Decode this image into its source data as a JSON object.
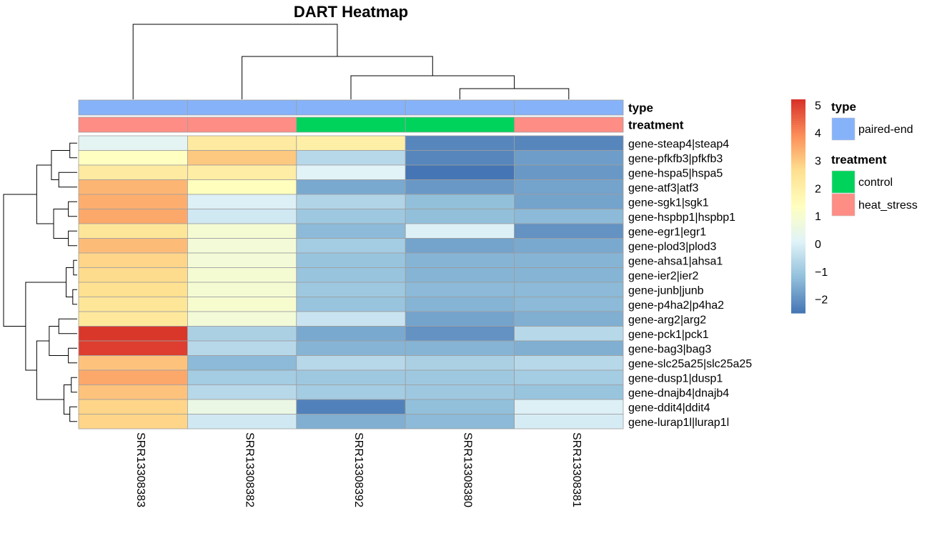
{
  "chart_data": {
    "type": "heatmap",
    "title": "DART Heatmap",
    "columns": [
      "SRR13308383",
      "SRR13308382",
      "SRR13308392",
      "SRR13308380",
      "SRR13308381"
    ],
    "rows": [
      "gene-steap4|steap4",
      "gene-pfkfb3|pfkfb3",
      "gene-hspa5|hspa5",
      "gene-atf3|atf3",
      "gene-sgk1|sgk1",
      "gene-hspbp1|hspbp1",
      "gene-egr1|egr1",
      "gene-plod3|plod3",
      "gene-ahsa1|ahsa1",
      "gene-ier2|ier2",
      "gene-junb|junb",
      "gene-p4ha2|p4ha2",
      "gene-arg2|arg2",
      "gene-pck1|pck1",
      "gene-bag3|bag3",
      "gene-slc25a25|slc25a25",
      "gene-dusp1|dusp1",
      "gene-dnajb4|dnajb4",
      "gene-ddit4|ddit4",
      "gene-lurap1l|lurap1l"
    ],
    "values": [
      [
        0.2,
        2.2,
        2.0,
        -2.2,
        -2.2
      ],
      [
        1.3,
        3.0,
        -0.6,
        -2.2,
        -1.8
      ],
      [
        2.2,
        2.1,
        0.1,
        -2.5,
        -1.9
      ],
      [
        3.3,
        1.4,
        -1.6,
        -1.9,
        -1.7
      ],
      [
        3.4,
        0.0,
        -0.7,
        -1.2,
        -1.7
      ],
      [
        3.5,
        -0.2,
        -1.0,
        -1.2,
        -1.3
      ],
      [
        2.4,
        0.9,
        -1.3,
        0.0,
        -2.0
      ],
      [
        3.2,
        0.8,
        -0.9,
        -1.7,
        -1.6
      ],
      [
        2.8,
        0.8,
        -1.1,
        -1.4,
        -1.4
      ],
      [
        2.7,
        0.9,
        -1.1,
        -1.4,
        -1.4
      ],
      [
        2.6,
        0.9,
        -1.0,
        -1.3,
        -1.3
      ],
      [
        2.4,
        1.0,
        -1.1,
        -1.4,
        -1.3
      ],
      [
        2.3,
        0.8,
        -0.3,
        -1.7,
        -1.5
      ],
      [
        5.1,
        -0.8,
        -1.6,
        -2.0,
        -0.6
      ],
      [
        5.0,
        -0.6,
        -1.4,
        -1.4,
        -1.5
      ],
      [
        3.1,
        -1.3,
        -0.6,
        -0.8,
        -0.6
      ],
      [
        3.5,
        -0.9,
        -1.0,
        -1.0,
        -0.9
      ],
      [
        3.1,
        -0.6,
        -0.9,
        -1.0,
        -1.1
      ],
      [
        2.8,
        0.5,
        -2.3,
        -1.2,
        0.0
      ],
      [
        2.8,
        -0.2,
        -1.5,
        -1.3,
        -0.1
      ]
    ],
    "color_scale": {
      "colors": [
        "#4575b4",
        "#91bfdb",
        "#e0f3f8",
        "#ffffbf",
        "#fee090",
        "#fc8d59",
        "#d73027"
      ],
      "min": -2.5,
      "max": 5.2,
      "ticks": [
        5,
        4,
        3,
        2,
        1,
        0,
        -1,
        -2
      ]
    },
    "annotations": [
      {
        "name": "type",
        "values": [
          "paired-end",
          "paired-end",
          "paired-end",
          "paired-end",
          "paired-end"
        ]
      },
      {
        "name": "treatment",
        "values": [
          "heat_stress",
          "heat_stress",
          "control",
          "control",
          "heat_stress"
        ]
      }
    ],
    "legend": {
      "position": "right",
      "groups": [
        {
          "title": "type",
          "items": [
            {
              "label": "paired-end",
              "color": "#86b2f9"
            }
          ]
        },
        {
          "title": "treatment",
          "items": [
            {
              "label": "control",
              "color": "#00d35c"
            },
            {
              "label": "heat_stress",
              "color": "#fd8d85"
            }
          ]
        }
      ]
    },
    "col_dendrogram": {
      "merges": [
        [
          3,
          4
        ],
        [
          2,
          3
        ],
        [
          1,
          2
        ],
        [
          0,
          1
        ]
      ],
      "heights": [
        0.25,
        0.55,
        1.0,
        1.75
      ]
    },
    "row_dendrogram": {
      "merges": [
        [
          0,
          1
        ],
        [
          2,
          3
        ],
        [
          4,
          5
        ],
        [
          6,
          7
        ],
        [
          8,
          9
        ],
        [
          10,
          11
        ],
        [
          12,
          13
        ],
        [
          14,
          15
        ],
        [
          16,
          17
        ],
        [
          18,
          19
        ],
        [
          0,
          2
        ],
        [
          4,
          6
        ],
        [
          8,
          10
        ],
        [
          12,
          14
        ],
        [
          16,
          18
        ],
        [
          0,
          4
        ],
        [
          12,
          16
        ],
        [
          8,
          12
        ],
        [
          0,
          8
        ]
      ],
      "heights": [
        0.1,
        0.25,
        0.12,
        0.12,
        0.05,
        0.06,
        0.25,
        0.12,
        0.08,
        0.1,
        0.35,
        0.32,
        0.15,
        0.38,
        0.18,
        0.55,
        0.55,
        0.7,
        1.0
      ]
    }
  },
  "colors": {
    "grid": "#9e9e9e",
    "dendrogram": "#000000"
  }
}
